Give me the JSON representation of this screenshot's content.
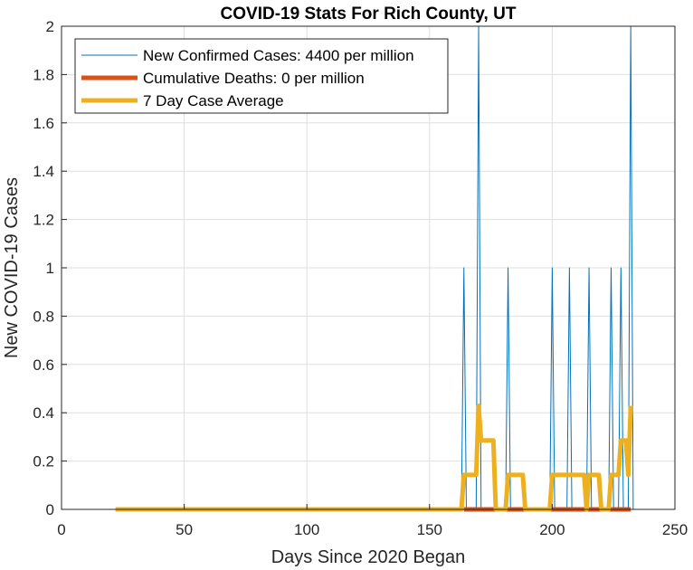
{
  "chart_data": {
    "type": "line",
    "title": "COVID-19 Stats For Rich County, UT",
    "xlabel": "Days Since 2020 Began",
    "ylabel": "New COVID-19 Cases",
    "xlim": [
      0,
      250
    ],
    "ylim": [
      0,
      2
    ],
    "xticks": [
      0,
      50,
      100,
      150,
      200,
      250
    ],
    "yticks": [
      0,
      0.2,
      0.4,
      0.6,
      0.8,
      1,
      1.2,
      1.4,
      1.6,
      1.8,
      2
    ],
    "grid": true,
    "legend_position": "top-left",
    "series": [
      {
        "name": "New Confirmed Cases: 4400 per million",
        "color": "#0072BD",
        "x_start": 22,
        "x_end": 232,
        "spikes": [
          {
            "x": 164,
            "y": 1
          },
          {
            "x": 170,
            "y": 2
          },
          {
            "x": 182,
            "y": 1
          },
          {
            "x": 200,
            "y": 1
          },
          {
            "x": 207,
            "y": 1
          },
          {
            "x": 215,
            "y": 1
          },
          {
            "x": 224,
            "y": 1
          },
          {
            "x": 228,
            "y": 1
          },
          {
            "x": 232,
            "y": 2
          }
        ]
      },
      {
        "name": "Cumulative Deaths: 0 per million",
        "color": "#D95319",
        "x": [
          164,
          232
        ],
        "y": [
          0,
          0
        ]
      },
      {
        "name": "7 Day Case Average",
        "color": "#EDB120",
        "x": [
          22,
          163,
          164,
          169,
          170,
          171,
          172,
          176,
          177,
          181,
          182,
          188,
          189,
          199,
          200,
          213,
          214,
          215,
          219,
          220,
          223,
          224,
          227,
          228,
          230,
          231,
          232
        ],
        "y": [
          0,
          0,
          0.1429,
          0.1429,
          0.4286,
          0.2857,
          0.2857,
          0.2857,
          0,
          0,
          0.1429,
          0.1429,
          0,
          0,
          0.1429,
          0.1429,
          0,
          0.1429,
          0.1429,
          0,
          0,
          0.1429,
          0.1429,
          0.2857,
          0.2857,
          0.1429,
          0.4286
        ]
      }
    ]
  }
}
